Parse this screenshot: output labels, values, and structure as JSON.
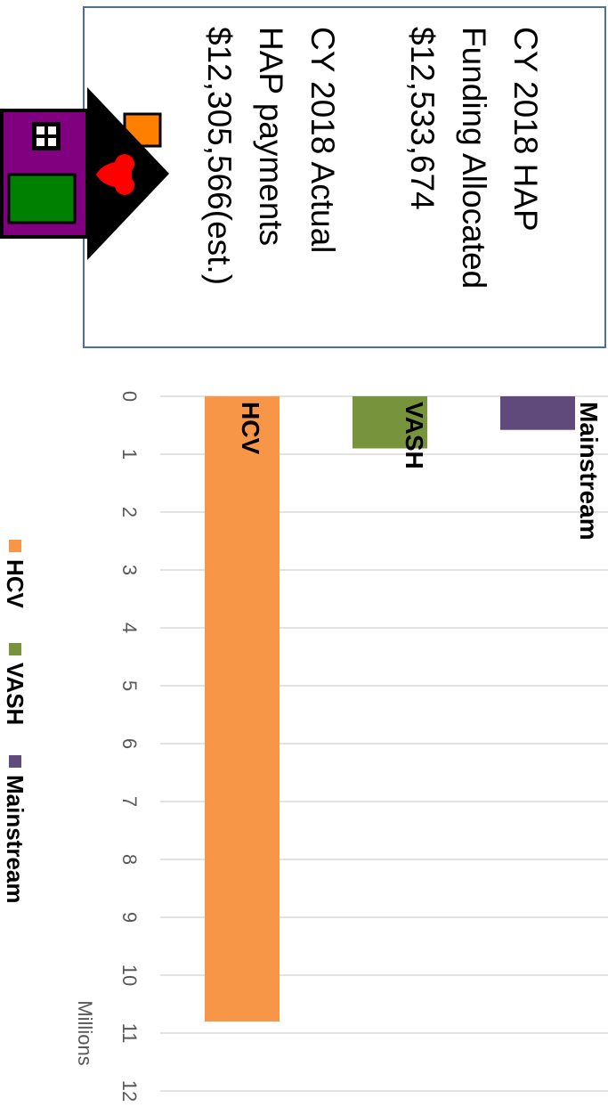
{
  "info_box": {
    "lines": [
      "CY 2018 HAP",
      "Funding Allocated",
      "$12,533,674",
      "CY 2018 Actual",
      "HAP payments",
      "$12,305,566(est.)"
    ]
  },
  "colors": {
    "box_border": "#4a6fa5",
    "grid": "#d9d9d9",
    "axis_text": "#595959",
    "house_wall": "#800080",
    "house_roof": "#000000",
    "house_door": "#008000",
    "house_chimney": "#ff8000",
    "house_heart": "#ff0000"
  },
  "chart_data": {
    "type": "bar",
    "orientation": "horizontal",
    "categories": [
      "HCV",
      "VASH",
      "Mainstream"
    ],
    "series": [
      {
        "name": "HCV",
        "values": [
          10.8,
          null,
          null
        ],
        "color": "#f79646"
      },
      {
        "name": "VASH",
        "values": [
          null,
          0.9,
          null
        ],
        "color": "#77933c"
      },
      {
        "name": "Mainstream",
        "values": [
          null,
          null,
          0.58
        ],
        "color": "#604a7b"
      }
    ],
    "axis": {
      "min": 0,
      "max": 12,
      "ticks": [
        "0",
        "1",
        "2",
        "3",
        "4",
        "5",
        "6",
        "7",
        "8",
        "9",
        "10",
        "11",
        "12"
      ],
      "unit_label": "Millions"
    },
    "legend": [
      "HCV",
      "VASH",
      "Mainstream"
    ],
    "legend_position": "bottom",
    "grid": true
  }
}
